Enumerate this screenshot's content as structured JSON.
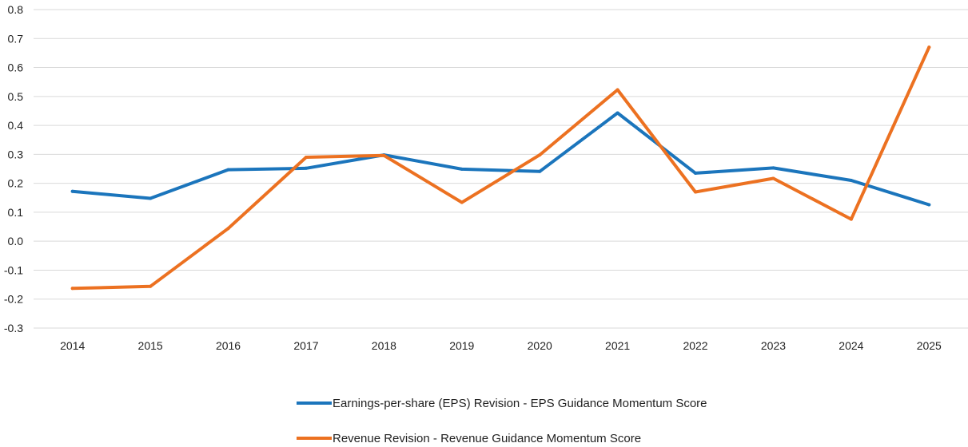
{
  "chart_data": {
    "type": "line",
    "title": "",
    "xlabel": "",
    "ylabel": "",
    "ylim": [
      -0.3,
      0.8
    ],
    "yticks": [
      "0.8",
      "0.7",
      "0.6",
      "0.5",
      "0.4",
      "0.3",
      "0.2",
      "0.1",
      "0.0",
      "-0.1",
      "-0.2",
      "-0.3"
    ],
    "categories": [
      "2014",
      "2015",
      "2016",
      "2017",
      "2018",
      "2019",
      "2020",
      "2021",
      "2022",
      "2023",
      "2024",
      "2025"
    ],
    "grid": true,
    "legend_position": "bottom",
    "series": [
      {
        "name": "Earnings-per-share (EPS) Revision - EPS Guidance Momentum Score",
        "color": "#1b75bc",
        "values": [
          0.172,
          0.148,
          0.247,
          0.252,
          0.298,
          0.249,
          0.241,
          0.443,
          0.235,
          0.253,
          0.21,
          0.126
        ]
      },
      {
        "name": "Revenue Revision - Revenue Guidance Momentum Score",
        "color": "#ec7121",
        "values": [
          -0.163,
          -0.156,
          0.044,
          0.29,
          0.296,
          0.134,
          0.298,
          0.523,
          0.17,
          0.217,
          0.076,
          0.67
        ]
      }
    ]
  }
}
